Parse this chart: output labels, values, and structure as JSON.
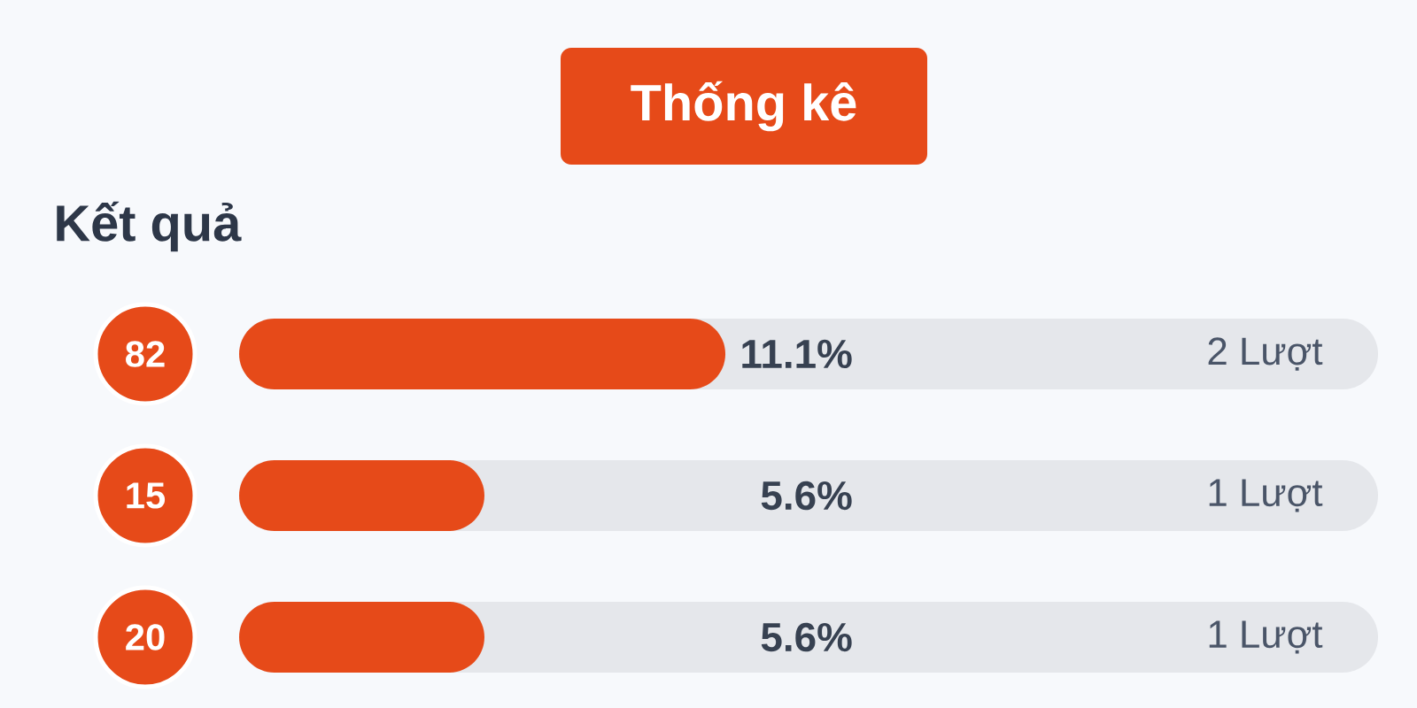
{
  "chart_data": {
    "type": "bar",
    "orientation": "horizontal",
    "title": "Thống kê",
    "subtitle": "Kết quả",
    "categories": [
      "82",
      "15",
      "20"
    ],
    "values": [
      11.1,
      5.6,
      5.6
    ],
    "value_labels": [
      "11.1%",
      "5.6%",
      "5.6%"
    ],
    "color": "#e64a19",
    "xlim": [
      0,
      26
    ],
    "tick_labels": "y",
    "annotations": [
      "2 Lượt",
      "1 Lượt",
      "1 Lượt"
    ]
  }
}
